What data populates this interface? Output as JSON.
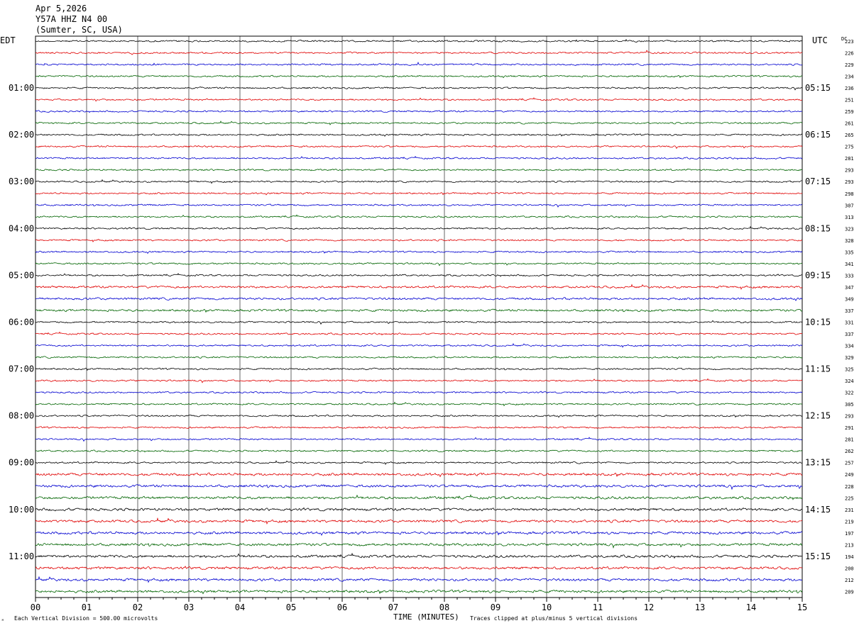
{
  "header": {
    "date": "Apr 5,2026",
    "station": "Y57A HHZ N4 00",
    "location": "(Sumter, SC, USA)"
  },
  "left_tz": "EDT",
  "right_tz": "UTC",
  "dc_label": "DC",
  "footer": {
    "xlabel": "TIME (MINUTES)",
    "scale_note": "Each Vertical Division =  500.00 microvolts",
    "clip_note": "Traces clipped at plus/minus 5 vertical divisions"
  },
  "chart_data": {
    "type": "line",
    "x_ticks": [
      "00",
      "01",
      "02",
      "03",
      "04",
      "05",
      "06",
      "07",
      "08",
      "09",
      "10",
      "11",
      "12",
      "13",
      "14",
      "15"
    ],
    "xlim": [
      0,
      15
    ],
    "left_labels": [
      "01:00",
      "02:00",
      "03:00",
      "04:00",
      "05:00",
      "06:00",
      "07:00",
      "08:00",
      "09:00",
      "10:00",
      "11:00"
    ],
    "right_labels": [
      "05:15",
      "06:15",
      "07:15",
      "08:15",
      "09:15",
      "10:15",
      "11:15",
      "12:15",
      "13:15",
      "14:15",
      "15:15"
    ],
    "dc_offsets": [
      223,
      226,
      229,
      234,
      236,
      251,
      259,
      261,
      265,
      275,
      281,
      293,
      293,
      298,
      307,
      313,
      323,
      328,
      335,
      341,
      333,
      347,
      349,
      337,
      331,
      337,
      334,
      329,
      325,
      324,
      322,
      305,
      293,
      291,
      281,
      262,
      257,
      249,
      228,
      225,
      231,
      219,
      197,
      213,
      194,
      200,
      212,
      209
    ],
    "trace_colors": [
      "#000000",
      "#e00000",
      "#0000d0",
      "#006400"
    ],
    "grid": true
  }
}
